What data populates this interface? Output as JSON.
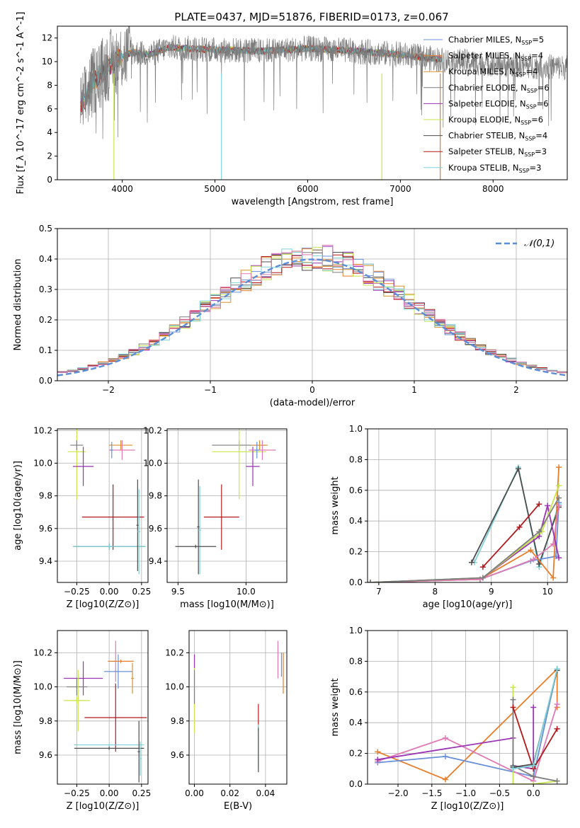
{
  "title": "PLATE=0437, MJD=51876, FIBERID=0173, z=0.067",
  "colors": {
    "chabrier_miles": "#6a8fd8",
    "salpeter_miles": "#e87d2a",
    "kroupa_miles": "#d9912e",
    "chabrier_elodie": "#7d7d7d",
    "salpeter_elodie": "#9b33b5",
    "kroupa_elodie": "#c8e64b",
    "chabrier_stelib": "#4d4d4d",
    "salpeter_stelib": "#b3181c",
    "kroupa_stelib": "#7fd3d8",
    "pink": "#e07ab5",
    "normal": "#5b8ed6"
  },
  "chart_data": [
    {
      "id": "spectrum",
      "type": "line",
      "xlabel": "wavelength [Angstrom, rest frame]",
      "ylabel": "Flux [f_λ 10^-17 erg cm^-2 s^-1 A^-1]",
      "xlim": [
        3300,
        8800
      ],
      "ylim": [
        0,
        13
      ],
      "xticks": [
        "4000",
        "5000",
        "6000",
        "7000",
        "8000"
      ],
      "yticks": [
        "0",
        "2",
        "4",
        "6",
        "8",
        "10",
        "12"
      ],
      "continuum": {
        "x": [
          3550,
          3700,
          3900,
          4100,
          4300,
          4500,
          5000,
          5500,
          6000,
          6500,
          7000,
          7500,
          8000,
          8500,
          8800
        ],
        "y": [
          6.0,
          8.5,
          10.0,
          10.8,
          10.6,
          11.2,
          11.0,
          10.9,
          11.1,
          10.9,
          10.6,
          10.1,
          9.8,
          9.6,
          9.5
        ]
      },
      "legend_position": "right",
      "legend": [
        {
          "label": "Chabrier MILES, N_SSP=5",
          "color_key": "chabrier_miles"
        },
        {
          "label": "Salpeter MILES, N_SSP=4",
          "color_key": "salpeter_miles"
        },
        {
          "label": "Kroupa MILES, N_SSP=4",
          "color_key": "kroupa_miles"
        },
        {
          "label": "Chabrier ELODIE, N_SSP=6",
          "color_key": "chabrier_elodie"
        },
        {
          "label": "Salpeter ELODIE, N_SSP=6",
          "color_key": "salpeter_elodie"
        },
        {
          "label": "Kroupa ELODIE, N_SSP=6",
          "color_key": "kroupa_elodie"
        },
        {
          "label": "Chabrier STELIB, N_SSP=4",
          "color_key": "chabrier_stelib"
        },
        {
          "label": "Salpeter STELIB, N_SSP=3",
          "color_key": "salpeter_stelib"
        },
        {
          "label": "Kroupa STELIB, N_SSP=3",
          "color_key": "kroupa_stelib"
        }
      ]
    },
    {
      "id": "residuals",
      "type": "area",
      "xlabel": "(data-model)/error",
      "ylabel": "Normed distribution",
      "xlim": [
        -2.5,
        2.5
      ],
      "ylim": [
        0,
        0.5
      ],
      "xticks": [
        "−2",
        "−1",
        "0",
        "1",
        "2"
      ],
      "yticks": [
        "0.0",
        "0.1",
        "0.2",
        "0.3",
        "0.4",
        "0.5"
      ],
      "bin_width": 0.1,
      "grid": true,
      "normal_curve": {
        "label": "𝒩(0,1)",
        "mean": 0,
        "sigma": 1
      },
      "legend_position": "top-right"
    },
    {
      "id": "age_vs_Z",
      "type": "scatter",
      "xlabel": "Z [log10(Z/Z⊙)]",
      "ylabel": "age [log10(age/yr)]",
      "xlim": [
        -0.4,
        0.3
      ],
      "ylim": [
        9.27,
        10.21
      ],
      "xticks": [
        "−0.25",
        "0.00",
        "0.25"
      ],
      "yticks": [
        "9.4",
        "9.6",
        "9.8",
        "10.0",
        "10.2"
      ],
      "points": [
        {
          "c": "kroupa_elodie",
          "x": -0.25,
          "xe": 0.07,
          "y": 10.07,
          "ye": 0.29
        },
        {
          "c": "chabrier_elodie",
          "x": -0.25,
          "xe": 0.05,
          "y": 10.11,
          "ye": 0.03
        },
        {
          "c": "salpeter_elodie",
          "x": -0.2,
          "xe": 0.08,
          "y": 9.98,
          "ye": 0.12
        },
        {
          "c": "kroupa_miles",
          "x": 0.09,
          "xe": 0.09,
          "y": 10.11,
          "ye": 0.03
        },
        {
          "c": "pink",
          "x": 0.1,
          "xe": 0.1,
          "y": 10.08,
          "ye": 0.06
        },
        {
          "c": "chabrier_miles",
          "x": 0.02,
          "xe": 0.01,
          "y": 10.08,
          "ye": 0.05
        },
        {
          "c": "salpeter_stelib",
          "x": 0.03,
          "xe": 0.24,
          "y": 9.67,
          "ye": 0.2
        },
        {
          "c": "chabrier_stelib",
          "x": 0.0,
          "xe": 0.28,
          "y": 9.49,
          "ye": 0.02
        },
        {
          "c": "kroupa_stelib",
          "x": 0.0,
          "xe": 0.28,
          "y": 9.49,
          "ye": 0.02
        },
        {
          "c": "chabrier_stelib",
          "x": 0.22,
          "xe": 0.01,
          "y": 9.62,
          "ye": 0.28
        },
        {
          "c": "kroupa_stelib",
          "x": 0.23,
          "xe": 0.01,
          "y": 9.58,
          "ye": 0.26
        }
      ]
    },
    {
      "id": "age_vs_mass",
      "type": "scatter",
      "xlabel": "mass [log10(M/M⊙)]",
      "ylabel": "",
      "xlim": [
        9.42,
        10.3
      ],
      "ylim": [
        9.27,
        10.21
      ],
      "xticks": [
        "9.5",
        "10.0"
      ],
      "yticks": [
        "9.4",
        "9.6",
        "9.8",
        "10.0",
        "10.2"
      ],
      "points": [
        {
          "c": "chabrier_elodie",
          "x": 9.95,
          "xe": 0.2,
          "y": 10.11,
          "ye": 0.03
        },
        {
          "c": "kroupa_elodie",
          "x": 9.95,
          "xe": 0.2,
          "y": 10.07,
          "ye": 0.29
        },
        {
          "c": "salpeter_elodie",
          "x": 10.05,
          "xe": 0.05,
          "y": 9.98,
          "ye": 0.12
        },
        {
          "c": "kroupa_miles",
          "x": 10.1,
          "xe": 0.06,
          "y": 10.11,
          "ye": 0.03
        },
        {
          "c": "pink",
          "x": 10.12,
          "xe": 0.1,
          "y": 10.08,
          "ye": 0.06
        },
        {
          "c": "chabrier_miles",
          "x": 10.08,
          "xe": 0.02,
          "y": 10.08,
          "ye": 0.05
        },
        {
          "c": "salpeter_stelib",
          "x": 9.82,
          "xe": 0.13,
          "y": 9.67,
          "ye": 0.2
        },
        {
          "c": "chabrier_stelib",
          "x": 9.65,
          "xe": 0.01,
          "y": 9.61,
          "ye": 0.29
        },
        {
          "c": "kroupa_stelib",
          "x": 9.66,
          "xe": 0.01,
          "y": 9.59,
          "ye": 0.27
        },
        {
          "c": "chabrier_stelib",
          "x": 9.63,
          "xe": 0.15,
          "y": 9.49,
          "ye": 0.01
        }
      ]
    },
    {
      "id": "weight_vs_age",
      "type": "line",
      "xlabel": "age [log10(age/yr)]",
      "ylabel": "mass weight",
      "xlim": [
        6.8,
        10.35
      ],
      "ylim": [
        0,
        1
      ],
      "xticks": [
        "7",
        "8",
        "9",
        "10"
      ],
      "yticks": [
        "0.0",
        "0.2",
        "0.4",
        "0.6",
        "0.8",
        "1.0"
      ],
      "series": [
        {
          "c": "kroupa_stelib",
          "x": [
            8.7,
            9.48,
            9.85,
            10.2
          ],
          "y": [
            0.13,
            0.75,
            0.1,
            0.51
          ]
        },
        {
          "c": "chabrier_stelib",
          "x": [
            8.65,
            9.48,
            9.85,
            10.2
          ],
          "y": [
            0.13,
            0.74,
            0.12,
            0.49
          ]
        },
        {
          "c": "salpeter_stelib",
          "x": [
            8.85,
            9.5,
            9.85
          ],
          "y": [
            0.1,
            0.36,
            0.51
          ]
        },
        {
          "c": "chabrier_miles",
          "x": [
            6.85,
            8.8,
            9.7,
            10.15,
            10.2
          ],
          "y": [
            0.0,
            0.02,
            0.14,
            0.17,
            0.52
          ]
        },
        {
          "c": "salpeter_miles",
          "x": [
            6.85,
            8.8,
            9.7,
            10.1,
            10.2
          ],
          "y": [
            0.0,
            0.02,
            0.21,
            0.03,
            0.75
          ]
        },
        {
          "c": "pink",
          "x": [
            6.85,
            8.8,
            9.75,
            10.1,
            10.2
          ],
          "y": [
            0.0,
            0.02,
            0.15,
            0.25,
            0.5
          ]
        },
        {
          "c": "salpeter_elodie",
          "x": [
            6.85,
            8.85,
            9.85,
            10.0,
            10.2
          ],
          "y": [
            0.0,
            0.03,
            0.3,
            0.5,
            0.16
          ]
        },
        {
          "c": "kroupa_elodie",
          "x": [
            6.85,
            8.85,
            9.9,
            10.2
          ],
          "y": [
            0.0,
            0.03,
            0.33,
            0.63
          ]
        },
        {
          "c": "chabrier_elodie",
          "x": [
            6.85,
            8.85,
            9.85,
            10.2
          ],
          "y": [
            0.0,
            0.03,
            0.33,
            0.55
          ]
        }
      ]
    },
    {
      "id": "mass_vs_Z",
      "type": "scatter",
      "xlabel": "Z [log10(Z/Z⊙)]",
      "ylabel": "mass [log10(M/M⊙)]",
      "xlim": [
        -0.4,
        0.3
      ],
      "ylim": [
        9.43,
        10.33
      ],
      "xticks": [
        "−0.25",
        "0.00",
        "0.25"
      ],
      "yticks": [
        "9.6",
        "9.8",
        "10.0",
        "10.2"
      ],
      "points": [
        {
          "c": "salpeter_elodie",
          "x": -0.2,
          "xe": 0.15,
          "y": 10.05,
          "ye": 0.1
        },
        {
          "c": "chabrier_elodie",
          "x": -0.25,
          "xe": 0.08,
          "y": 10.0,
          "ye": 0.05
        },
        {
          "c": "kroupa_elodie",
          "x": -0.24,
          "xe": 0.05,
          "y": 9.92,
          "ye": 0.18
        },
        {
          "c": "kroupa_elodie",
          "x": -0.25,
          "xe": 0.1,
          "y": 9.92,
          "ye": 0.02
        },
        {
          "c": "pink",
          "x": 0.05,
          "xe": 0.01,
          "y": 10.15,
          "ye": 0.12
        },
        {
          "c": "chabrier_miles",
          "x": 0.07,
          "xe": 0.11,
          "y": 10.09,
          "ye": 0.1
        },
        {
          "c": "salpeter_miles",
          "x": 0.09,
          "xe": 0.1,
          "y": 10.15,
          "ye": 0.01
        },
        {
          "c": "kroupa_miles",
          "x": 0.18,
          "xe": 0.01,
          "y": 10.05,
          "ye": 0.09
        },
        {
          "c": "salpeter_stelib",
          "x": 0.05,
          "xe": 0.24,
          "y": 9.82,
          "ye": 0.2
        },
        {
          "c": "kroupa_stelib",
          "x": 0.0,
          "xe": 0.27,
          "y": 9.66,
          "ye": 0.01
        },
        {
          "c": "chabrier_stelib",
          "x": 0.0,
          "xe": 0.27,
          "y": 9.64,
          "ye": 0.01
        },
        {
          "c": "chabrier_stelib",
          "x": 0.23,
          "xe": 0.01,
          "y": 9.62,
          "ye": 0.18
        },
        {
          "c": "kroupa_stelib",
          "x": 0.24,
          "xe": 0.01,
          "y": 9.58,
          "ye": 0.1
        }
      ]
    },
    {
      "id": "mass_vs_ebv",
      "type": "scatter",
      "xlabel": "E(B-V)",
      "ylabel": "",
      "xlim": [
        -0.003,
        0.052
      ],
      "ylim": [
        9.43,
        10.33
      ],
      "xticks": [
        "0.00",
        "0.02",
        "0.04"
      ],
      "yticks": [
        "9.6",
        "9.8",
        "10.0",
        "10.2"
      ],
      "points": [
        {
          "c": "salpeter_elodie",
          "x": 0.0,
          "xe": 0.0,
          "y": 10.15,
          "ye": 0.04
        },
        {
          "c": "kroupa_elodie",
          "x": 0.0,
          "xe": 0.0,
          "y": 9.92,
          "ye": 0.19
        },
        {
          "c": "chabrier_elodie",
          "x": 0.0,
          "xe": 0.0,
          "y": 10.0,
          "ye": 0.1
        },
        {
          "c": "salpeter_stelib",
          "x": 0.036,
          "xe": 0.0,
          "y": 9.82,
          "ye": 0.08
        },
        {
          "c": "kroupa_stelib",
          "x": 0.036,
          "xe": 0.0,
          "y": 9.65,
          "ye": 0.13
        },
        {
          "c": "chabrier_stelib",
          "x": 0.036,
          "xe": 0.0,
          "y": 9.63,
          "ye": 0.13
        },
        {
          "c": "pink",
          "x": 0.047,
          "xe": 0.0,
          "y": 10.16,
          "ye": 0.11
        },
        {
          "c": "chabrier_miles",
          "x": 0.049,
          "xe": 0.0,
          "y": 10.13,
          "ye": 0.07
        },
        {
          "c": "salpeter_miles",
          "x": 0.05,
          "xe": 0.0,
          "y": 10.08,
          "ye": 0.12
        }
      ]
    },
    {
      "id": "weight_vs_Z",
      "type": "line",
      "xlabel": "Z [log10(Z/Z⊙)]",
      "ylabel": "mass weight",
      "xlim": [
        -2.45,
        0.5
      ],
      "ylim": [
        0,
        1
      ],
      "xticks": [
        "−2.0",
        "−1.5",
        "−1.0",
        "−0.5",
        "0.0"
      ],
      "yticks": [
        "0.0",
        "0.2",
        "0.4",
        "0.6",
        "0.8",
        "1.0"
      ],
      "series": [
        {
          "c": "salpeter_miles",
          "x": [
            -2.3,
            -1.3,
            0.35,
            0.35
          ],
          "y": [
            0.21,
            0.03,
            0.75,
            0.5
          ]
        },
        {
          "c": "chabrier_miles",
          "x": [
            -2.3,
            -1.3,
            0.0,
            0.35
          ],
          "y": [
            0.14,
            0.18,
            0.05,
            0.75
          ]
        },
        {
          "c": "pink",
          "x": [
            -2.3,
            -1.3,
            0.0,
            0.35
          ],
          "y": [
            0.15,
            0.3,
            0.02,
            0.52
          ]
        },
        {
          "c": "salpeter_elodie",
          "x": [
            -2.3,
            -0.3,
            -0.3,
            0.0,
            0.0
          ],
          "y": [
            0.16,
            0.3,
            0.12,
            0.1,
            0.5
          ]
        },
        {
          "c": "kroupa_elodie",
          "x": [
            -0.3,
            -0.3,
            0.0,
            0.35
          ],
          "y": [
            0.63,
            0.0,
            0.0,
            0.02
          ]
        },
        {
          "c": "chabrier_elodie",
          "x": [
            -0.3,
            -0.3,
            0.0,
            0.35
          ],
          "y": [
            0.55,
            0.12,
            0.05,
            0.02
          ]
        },
        {
          "c": "salpeter_stelib",
          "x": [
            -0.3,
            0.0,
            0.35
          ],
          "y": [
            0.5,
            0.1,
            0.36
          ]
        },
        {
          "c": "chabrier_stelib",
          "x": [
            -0.3,
            0.0,
            0.35
          ],
          "y": [
            0.11,
            0.13,
            0.74
          ]
        },
        {
          "c": "kroupa_stelib",
          "x": [
            -0.3,
            0.0,
            0.35
          ],
          "y": [
            0.1,
            0.12,
            0.75
          ]
        }
      ]
    }
  ]
}
